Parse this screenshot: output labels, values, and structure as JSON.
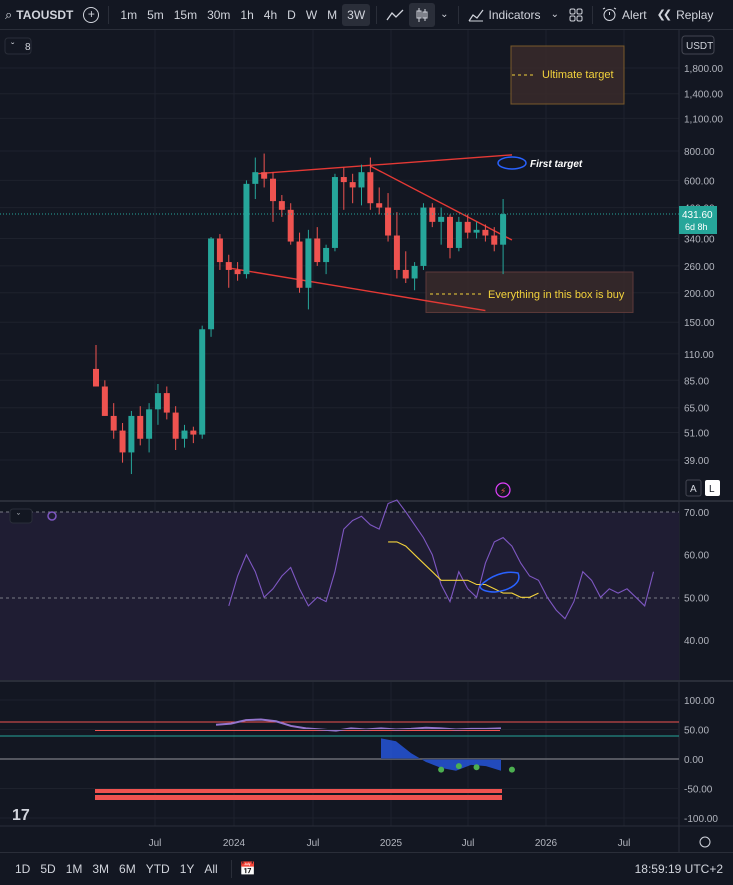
{
  "toolbar": {
    "symbol": "TAOUSDT",
    "timeframes": [
      "1m",
      "5m",
      "15m",
      "30m",
      "1h",
      "4h",
      "D",
      "W",
      "M",
      "3W"
    ],
    "active_timeframe": "3W",
    "indicators_label": "Indicators",
    "alert_label": "Alert",
    "replay_label": "Replay"
  },
  "legend_toggle": "8",
  "currency": "USDT",
  "price_scale": {
    "ticks": [
      "1,800.00",
      "1,400.00",
      "1,100.00",
      "800.00",
      "600.00",
      "460.00",
      "340.00",
      "260.00",
      "200.00",
      "150.00",
      "110.00",
      "85.00",
      "65.00",
      "51.00",
      "39.00"
    ],
    "tick_values": [
      1800,
      1400,
      1100,
      800,
      600,
      460,
      340,
      260,
      200,
      150,
      110,
      85,
      65,
      51,
      39
    ],
    "last_price": "431.60",
    "countdown": "6d 8h",
    "scale_buttons": [
      "A",
      "L"
    ]
  },
  "rsi_scale": {
    "ticks": [
      "70.00",
      "60.00",
      "50.00",
      "40.00"
    ],
    "tick_values": [
      70,
      60,
      50,
      40
    ]
  },
  "osc_scale": {
    "ticks": [
      "100.00",
      "50.00",
      "0.00",
      "-50.00",
      "-100.00"
    ],
    "tick_values": [
      100,
      50,
      0,
      -50,
      -100
    ]
  },
  "time_axis": [
    "Jul",
    "2024",
    "Jul",
    "2025",
    "Jul",
    "2026",
    "Jul"
  ],
  "annotations": {
    "ultimate": "Ultimate target",
    "first": "First target",
    "buybox": "Everything in this box is buy"
  },
  "bottom": {
    "ranges": [
      "1D",
      "5D",
      "1M",
      "3M",
      "6M",
      "YTD",
      "1Y",
      "All"
    ],
    "clock": "18:59:19 UTC+2"
  },
  "colors": {
    "up": "#26a69a",
    "down": "#ef5350",
    "bg": "#131722",
    "grid": "#2a2e39",
    "annot": "#f2d23c",
    "rsi": "#7e57c2"
  },
  "chart_data": [
    {
      "type": "candlestick",
      "title": "TAOUSDT 3W",
      "scale": "log",
      "ylim": [
        30,
        2300
      ],
      "candles": [
        {
          "o": 95,
          "h": 120,
          "l": 80,
          "c": 80
        },
        {
          "o": 80,
          "h": 85,
          "l": 60,
          "c": 60
        },
        {
          "o": 60,
          "h": 68,
          "l": 48,
          "c": 52
        },
        {
          "o": 52,
          "h": 56,
          "l": 38,
          "c": 42
        },
        {
          "o": 42,
          "h": 63,
          "l": 34,
          "c": 60
        },
        {
          "o": 60,
          "h": 66,
          "l": 45,
          "c": 48
        },
        {
          "o": 48,
          "h": 68,
          "l": 42,
          "c": 64
        },
        {
          "o": 64,
          "h": 82,
          "l": 55,
          "c": 75
        },
        {
          "o": 75,
          "h": 80,
          "l": 58,
          "c": 62
        },
        {
          "o": 62,
          "h": 66,
          "l": 43,
          "c": 48
        },
        {
          "o": 48,
          "h": 55,
          "l": 44,
          "c": 52
        },
        {
          "o": 52,
          "h": 54,
          "l": 46,
          "c": 50
        },
        {
          "o": 50,
          "h": 145,
          "l": 48,
          "c": 140
        },
        {
          "o": 140,
          "h": 345,
          "l": 130,
          "c": 340
        },
        {
          "o": 340,
          "h": 355,
          "l": 250,
          "c": 270
        },
        {
          "o": 270,
          "h": 290,
          "l": 210,
          "c": 250
        },
        {
          "o": 250,
          "h": 270,
          "l": 225,
          "c": 240
        },
        {
          "o": 240,
          "h": 600,
          "l": 230,
          "c": 580
        },
        {
          "o": 580,
          "h": 750,
          "l": 500,
          "c": 650
        },
        {
          "o": 650,
          "h": 780,
          "l": 560,
          "c": 610
        },
        {
          "o": 610,
          "h": 650,
          "l": 400,
          "c": 490
        },
        {
          "o": 490,
          "h": 520,
          "l": 420,
          "c": 450
        },
        {
          "o": 450,
          "h": 480,
          "l": 320,
          "c": 330
        },
        {
          "o": 330,
          "h": 360,
          "l": 200,
          "c": 210
        },
        {
          "o": 210,
          "h": 370,
          "l": 170,
          "c": 340
        },
        {
          "o": 340,
          "h": 380,
          "l": 260,
          "c": 270
        },
        {
          "o": 270,
          "h": 320,
          "l": 240,
          "c": 310
        },
        {
          "o": 310,
          "h": 640,
          "l": 300,
          "c": 620
        },
        {
          "o": 620,
          "h": 680,
          "l": 450,
          "c": 590
        },
        {
          "o": 590,
          "h": 640,
          "l": 480,
          "c": 560
        },
        {
          "o": 560,
          "h": 700,
          "l": 470,
          "c": 650
        },
        {
          "o": 650,
          "h": 750,
          "l": 450,
          "c": 480
        },
        {
          "o": 480,
          "h": 560,
          "l": 430,
          "c": 460
        },
        {
          "o": 460,
          "h": 530,
          "l": 330,
          "c": 350
        },
        {
          "o": 350,
          "h": 440,
          "l": 230,
          "c": 250
        },
        {
          "o": 250,
          "h": 300,
          "l": 220,
          "c": 230
        },
        {
          "o": 230,
          "h": 270,
          "l": 205,
          "c": 260
        },
        {
          "o": 260,
          "h": 480,
          "l": 250,
          "c": 460
        },
        {
          "o": 460,
          "h": 480,
          "l": 380,
          "c": 400
        },
        {
          "o": 400,
          "h": 460,
          "l": 320,
          "c": 420
        },
        {
          "o": 420,
          "h": 430,
          "l": 280,
          "c": 310
        },
        {
          "o": 310,
          "h": 420,
          "l": 300,
          "c": 400
        },
        {
          "o": 400,
          "h": 430,
          "l": 340,
          "c": 360
        },
        {
          "o": 360,
          "h": 400,
          "l": 340,
          "c": 370
        },
        {
          "o": 370,
          "h": 390,
          "l": 330,
          "c": 350
        },
        {
          "o": 350,
          "h": 380,
          "l": 300,
          "c": 320
        },
        {
          "o": 320,
          "h": 500,
          "l": 240,
          "c": 431.6
        }
      ],
      "trendlines": [
        {
          "from": [
            18,
            640
          ],
          "to": [
            47,
            770
          ],
          "color": "#e53935"
        },
        {
          "from": [
            15,
            255
          ],
          "to": [
            44,
            168
          ],
          "color": "#e53935"
        },
        {
          "from": [
            31,
            690
          ],
          "to": [
            47,
            335
          ],
          "color": "#e53935"
        }
      ],
      "boxes": [
        {
          "x0": 38,
          "x1": 47,
          "y0": 165,
          "y1": 245,
          "label": "Everything in this box is buy"
        },
        {
          "x0": 45,
          "x1": 54,
          "y0": 1000,
          "y1": 2150,
          "label": "Ultimate target"
        }
      ]
    },
    {
      "type": "line",
      "name": "RSI",
      "ylim": [
        30,
        72
      ],
      "x0": 4,
      "values": [
        48,
        55,
        60,
        56,
        50,
        52,
        55,
        57,
        52,
        48,
        50,
        49,
        56,
        66,
        68,
        69,
        67,
        66,
        72,
        75,
        70,
        67,
        64,
        60,
        53,
        49,
        56,
        52,
        50,
        58,
        63,
        64,
        62,
        58,
        55,
        54,
        50,
        47,
        45,
        49,
        56,
        54,
        50,
        52,
        51,
        52,
        50,
        48,
        56
      ],
      "ma_values": [
        null,
        null,
        null,
        null,
        null,
        null,
        null,
        null,
        null,
        null,
        null,
        null,
        null,
        null,
        null,
        null,
        null,
        null,
        null,
        null,
        null,
        null,
        null,
        null,
        null,
        null,
        null,
        null,
        null,
        63,
        63,
        62,
        60,
        58,
        56,
        54,
        54,
        54,
        54,
        53,
        53,
        52,
        51,
        51,
        50,
        50,
        51
      ]
    },
    {
      "type": "area",
      "name": "Oscillator",
      "ylim": [
        -110,
        110
      ],
      "fast": [
        58,
        60,
        66,
        67,
        64,
        56,
        52,
        50,
        48,
        52,
        50,
        52,
        50,
        51,
        53,
        52,
        50,
        51,
        51,
        52
      ],
      "slow": [
        null,
        null,
        null,
        null,
        null,
        null,
        null,
        null,
        null,
        null,
        null,
        35,
        30,
        10,
        -5,
        -15,
        -20,
        -10,
        -12,
        -20
      ],
      "dots": [
        [
          39,
          -18
        ],
        [
          41,
          -12
        ],
        [
          43,
          -14
        ],
        [
          47,
          -18
        ]
      ]
    }
  ]
}
